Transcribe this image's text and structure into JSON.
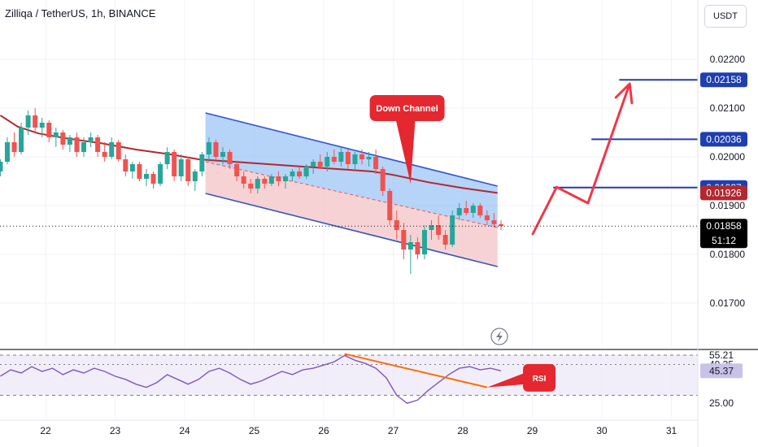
{
  "header": {
    "symbol_title": "Zilliqa / TetherUS, 1h, BINANCE",
    "currency_button": "USDT"
  },
  "colors": {
    "up": "#26a69a",
    "down": "#ef5350",
    "ma": "#b2282e",
    "channel_line": "#2f56c9",
    "channel_upper_fill": "#9ec4f5",
    "channel_lower_fill": "#f4c3c6",
    "target_line": "#1f3fb0",
    "arrow": "#f23645",
    "rsi_line": "#7e57c2",
    "rsi_band": "#ede7f6",
    "rsi_trend": "#ff6d00",
    "callout": "#e5282f"
  },
  "chart_data": [
    {
      "type": "candlestick",
      "title": "Zilliqa / TetherUS, 1h, BINANCE",
      "x_tick_labels": [
        "22",
        "23",
        "24",
        "25",
        "26",
        "27",
        "28",
        "29",
        "30",
        "31"
      ],
      "y_tick_labels": [
        "0.02200",
        "0.02100",
        "0.02000",
        "0.01900",
        "0.01800",
        "0.01700"
      ],
      "ylim": [
        0.0165,
        0.0228
      ],
      "xlim": [
        21.35,
        31.4
      ],
      "grid": true,
      "price_labels": [
        {
          "value": 0.02158,
          "text": "0.02158",
          "style": "target"
        },
        {
          "value": 0.02036,
          "text": "0.02036",
          "style": "target"
        },
        {
          "value": 0.01937,
          "text": "0.01937",
          "style": "target"
        },
        {
          "value": 0.01926,
          "text": "0.01926",
          "style": "ma"
        },
        {
          "value": 0.01858,
          "text": "0.01858",
          "style": "last",
          "countdown": "51:12"
        }
      ],
      "moving_average": [
        [
          21.35,
          0.02085
        ],
        [
          21.6,
          0.02062
        ],
        [
          21.9,
          0.02048
        ],
        [
          22.3,
          0.02038
        ],
        [
          22.8,
          0.02028
        ],
        [
          23.3,
          0.02015
        ],
        [
          23.8,
          0.02005
        ],
        [
          24.2,
          0.01995
        ],
        [
          24.7,
          0.0199
        ],
        [
          25.2,
          0.01985
        ],
        [
          25.7,
          0.0198
        ],
        [
          26.2,
          0.01975
        ],
        [
          26.7,
          0.0197
        ],
        [
          27.0,
          0.01963
        ],
        [
          27.5,
          0.01948
        ],
        [
          28.0,
          0.01936
        ],
        [
          28.5,
          0.01926
        ]
      ],
      "candles": [
        [
          21.35,
          0.0197,
          0.01995,
          0.0196,
          0.0199
        ],
        [
          21.45,
          0.0199,
          0.0204,
          0.01985,
          0.0203
        ],
        [
          21.55,
          0.0203,
          0.0205,
          0.02,
          0.0201
        ],
        [
          21.65,
          0.0201,
          0.0207,
          0.02005,
          0.0206
        ],
        [
          21.75,
          0.0206,
          0.02095,
          0.02045,
          0.02085
        ],
        [
          21.85,
          0.02085,
          0.021,
          0.0205,
          0.0206
        ],
        [
          21.95,
          0.0206,
          0.0208,
          0.0204,
          0.0207
        ],
        [
          22.05,
          0.0207,
          0.02075,
          0.0203,
          0.0204
        ],
        [
          22.15,
          0.0204,
          0.0206,
          0.0202,
          0.0205
        ],
        [
          22.25,
          0.0205,
          0.02055,
          0.02015,
          0.02025
        ],
        [
          22.35,
          0.02025,
          0.02045,
          0.0201,
          0.0204
        ],
        [
          22.45,
          0.0204,
          0.0205,
          0.02,
          0.0201
        ],
        [
          22.55,
          0.0201,
          0.0204,
          0.02,
          0.0203
        ],
        [
          22.65,
          0.0203,
          0.0205,
          0.0202,
          0.0204
        ],
        [
          22.75,
          0.0204,
          0.02045,
          0.02,
          0.0201
        ],
        [
          22.85,
          0.0201,
          0.0203,
          0.0199,
          0.02
        ],
        [
          22.95,
          0.02,
          0.0204,
          0.01995,
          0.0203
        ],
        [
          23.05,
          0.0203,
          0.02035,
          0.0199,
          0.01995
        ],
        [
          23.15,
          0.01995,
          0.02005,
          0.0196,
          0.0197
        ],
        [
          23.25,
          0.0197,
          0.0199,
          0.01955,
          0.01985
        ],
        [
          23.35,
          0.01985,
          0.0199,
          0.0195,
          0.01955
        ],
        [
          23.45,
          0.01955,
          0.01975,
          0.0194,
          0.01965
        ],
        [
          23.55,
          0.01965,
          0.0197,
          0.01935,
          0.01945
        ],
        [
          23.65,
          0.01945,
          0.0199,
          0.0194,
          0.01985
        ],
        [
          23.75,
          0.01985,
          0.0202,
          0.01975,
          0.0201
        ],
        [
          23.85,
          0.0201,
          0.02015,
          0.0195,
          0.0196
        ],
        [
          23.95,
          0.0196,
          0.02005,
          0.0195,
          0.01995
        ],
        [
          24.05,
          0.01995,
          0.02,
          0.0194,
          0.0195
        ],
        [
          24.15,
          0.0195,
          0.01975,
          0.0193,
          0.0197
        ],
        [
          24.25,
          0.0197,
          0.0201,
          0.0196,
          0.02005
        ],
        [
          24.35,
          0.02005,
          0.0204,
          0.0199,
          0.0203
        ],
        [
          24.45,
          0.0203,
          0.02035,
          0.01995,
          0.02
        ],
        [
          24.55,
          0.02,
          0.0202,
          0.01985,
          0.0201
        ],
        [
          24.65,
          0.0201,
          0.02015,
          0.01975,
          0.01985
        ],
        [
          24.75,
          0.01985,
          0.0199,
          0.0195,
          0.0196
        ],
        [
          24.85,
          0.0196,
          0.0197,
          0.01935,
          0.01945
        ],
        [
          24.95,
          0.01945,
          0.01955,
          0.01925,
          0.01935
        ],
        [
          25.05,
          0.01935,
          0.0196,
          0.01925,
          0.01955
        ],
        [
          25.15,
          0.01955,
          0.0196,
          0.01935,
          0.01945
        ],
        [
          25.25,
          0.01945,
          0.01965,
          0.0194,
          0.0196
        ],
        [
          25.35,
          0.0196,
          0.0197,
          0.0194,
          0.0195
        ],
        [
          25.45,
          0.0195,
          0.01965,
          0.01935,
          0.0196
        ],
        [
          25.55,
          0.0196,
          0.01975,
          0.0195,
          0.0197
        ],
        [
          25.65,
          0.0197,
          0.0198,
          0.01955,
          0.0196
        ],
        [
          25.75,
          0.0196,
          0.01985,
          0.01955,
          0.0198
        ],
        [
          25.85,
          0.0198,
          0.01995,
          0.01965,
          0.0199
        ],
        [
          25.95,
          0.0199,
          0.02005,
          0.01975,
          0.0198
        ],
        [
          26.05,
          0.0198,
          0.0201,
          0.0197,
          0.02
        ],
        [
          26.15,
          0.02,
          0.02015,
          0.01985,
          0.0199
        ],
        [
          26.25,
          0.0199,
          0.0202,
          0.0198,
          0.0201
        ],
        [
          26.35,
          0.0201,
          0.02015,
          0.01975,
          0.01985
        ],
        [
          26.45,
          0.01985,
          0.0201,
          0.01975,
          0.02005
        ],
        [
          26.55,
          0.02005,
          0.02015,
          0.01985,
          0.01995
        ],
        [
          26.65,
          0.01995,
          0.0201,
          0.0198,
          0.02
        ],
        [
          26.75,
          0.02,
          0.02015,
          0.01965,
          0.01975
        ],
        [
          26.85,
          0.01975,
          0.0198,
          0.0192,
          0.0193
        ],
        [
          26.95,
          0.0193,
          0.01935,
          0.0186,
          0.0187
        ],
        [
          27.05,
          0.0187,
          0.0189,
          0.0183,
          0.0185
        ],
        [
          27.15,
          0.0185,
          0.01865,
          0.0179,
          0.0181
        ],
        [
          27.25,
          0.0181,
          0.0184,
          0.0176,
          0.01825
        ],
        [
          27.35,
          0.01825,
          0.01835,
          0.0179,
          0.018
        ],
        [
          27.45,
          0.018,
          0.0186,
          0.0179,
          0.0185
        ],
        [
          27.55,
          0.0185,
          0.0187,
          0.0183,
          0.0186
        ],
        [
          27.65,
          0.0186,
          0.0188,
          0.0183,
          0.0184
        ],
        [
          27.75,
          0.0184,
          0.0185,
          0.0181,
          0.0182
        ],
        [
          27.85,
          0.0182,
          0.0189,
          0.01815,
          0.0188
        ],
        [
          27.95,
          0.0188,
          0.01905,
          0.0187,
          0.01895
        ],
        [
          28.05,
          0.01895,
          0.0191,
          0.0188,
          0.01885
        ],
        [
          28.15,
          0.01885,
          0.01905,
          0.01875,
          0.019
        ],
        [
          28.25,
          0.019,
          0.01905,
          0.01875,
          0.0188
        ],
        [
          28.35,
          0.0188,
          0.0189,
          0.0186,
          0.0187
        ],
        [
          28.45,
          0.0187,
          0.01885,
          0.01855,
          0.01862
        ],
        [
          28.55,
          0.01862,
          0.0187,
          0.0185,
          0.01858
        ]
      ],
      "down_channel": {
        "upper": [
          [
            24.3,
            0.0209
          ],
          [
            28.5,
            0.0194
          ]
        ],
        "mid": [
          [
            24.3,
            0.0199
          ],
          [
            28.5,
            0.01855
          ]
        ],
        "lower": [
          [
            24.3,
            0.01925
          ],
          [
            28.5,
            0.01775
          ]
        ]
      },
      "target_lines": [
        {
          "value": 0.02158,
          "x_start": 30.25
        },
        {
          "value": 0.02036,
          "x_start": 29.85
        },
        {
          "value": 0.01937,
          "x_start": 29.3
        }
      ],
      "projection_path": [
        [
          29.0,
          0.0184
        ],
        [
          29.35,
          0.01938
        ],
        [
          29.8,
          0.01905
        ],
        [
          30.4,
          0.0215
        ]
      ],
      "annotations": [
        {
          "text": "Down Channel",
          "at": [
            27.2,
            0.021
          ],
          "points_to": [
            27.25,
            0.01945
          ]
        }
      ]
    },
    {
      "type": "line",
      "title": "RSI",
      "y_tick_labels": [
        "55.21",
        "49.35",
        "45.37",
        "25.00"
      ],
      "ylim": [
        20,
        65
      ],
      "band": [
        30,
        55.21
      ],
      "series": [
        {
          "name": "RSI",
          "points": [
            [
              21.35,
              42
            ],
            [
              21.5,
              46
            ],
            [
              21.65,
              44
            ],
            [
              21.8,
              48
            ],
            [
              21.95,
              45
            ],
            [
              22.1,
              47
            ],
            [
              22.25,
              43
            ],
            [
              22.4,
              46
            ],
            [
              22.55,
              44
            ],
            [
              22.7,
              47
            ],
            [
              22.85,
              45
            ],
            [
              23.0,
              42
            ],
            [
              23.15,
              40
            ],
            [
              23.3,
              37
            ],
            [
              23.45,
              35
            ],
            [
              23.6,
              38
            ],
            [
              23.75,
              43
            ],
            [
              23.9,
              40
            ],
            [
              24.05,
              37
            ],
            [
              24.2,
              40
            ],
            [
              24.35,
              45
            ],
            [
              24.5,
              47
            ],
            [
              24.65,
              44
            ],
            [
              24.8,
              40
            ],
            [
              24.95,
              37
            ],
            [
              25.1,
              39
            ],
            [
              25.25,
              42
            ],
            [
              25.4,
              45
            ],
            [
              25.55,
              43
            ],
            [
              25.7,
              46
            ],
            [
              25.85,
              47
            ],
            [
              26.0,
              49
            ],
            [
              26.15,
              51
            ],
            [
              26.3,
              55
            ],
            [
              26.45,
              52
            ],
            [
              26.6,
              50
            ],
            [
              26.75,
              47
            ],
            [
              26.9,
              41
            ],
            [
              27.05,
              30
            ],
            [
              27.2,
              25
            ],
            [
              27.35,
              27
            ],
            [
              27.5,
              33
            ],
            [
              27.65,
              38
            ],
            [
              27.8,
              43
            ],
            [
              27.95,
              47
            ],
            [
              28.1,
              48
            ],
            [
              28.25,
              46
            ],
            [
              28.4,
              47
            ],
            [
              28.55,
              45.37
            ]
          ]
        }
      ],
      "trendline": [
        [
          26.3,
          56
        ],
        [
          28.35,
          35
        ]
      ],
      "annotations": [
        {
          "text": "RSI",
          "at": [
            29.1,
            41
          ],
          "points_to": [
            28.35,
            35
          ]
        }
      ]
    }
  ]
}
